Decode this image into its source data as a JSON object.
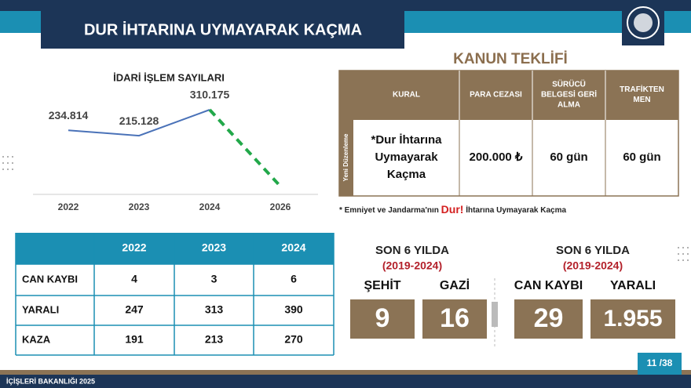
{
  "header": {
    "title": "DUR İHTARINA UYMAYARAK KAÇMA"
  },
  "chart_data": {
    "type": "line",
    "title": "İDARİ İŞLEM SAYILARI",
    "categories": [
      "2022",
      "2023",
      "2024",
      "2026"
    ],
    "series": [
      {
        "color": "#4a72b8",
        "values": [
          234814,
          215128,
          310175,
          null
        ],
        "value_labels": [
          "234.814",
          "215.128",
          "310.175",
          null
        ]
      },
      {
        "color": "#22a84a",
        "dashed": true,
        "values": [
          null,
          null,
          310175,
          30000
        ]
      }
    ]
  },
  "law_table": {
    "title": "KANUN TEKLİFİ",
    "side_label": "Yeni Düzenleme",
    "columns": [
      [
        "KURAL"
      ],
      [
        "PARA CEZASI"
      ],
      [
        "SÜRÜCÜ",
        "BELGESİ GERİ",
        "ALMA"
      ],
      [
        "TRAFİKTEN",
        "MEN"
      ]
    ],
    "rows": [
      [
        [
          "*Dur İhtarına",
          "Uymayarak",
          "Kaçma"
        ],
        [
          "200.000 ₺"
        ],
        [
          "60 gün"
        ],
        [
          "60 gün"
        ]
      ]
    ]
  },
  "note": {
    "before": "* Emniyet ve Jandarma'nın",
    "emphasis": "Dur!",
    "after": "İhtarına Uymayarak Kaçma"
  },
  "stats_table": {
    "columns": [
      "2022",
      "2023",
      "2024"
    ],
    "rows": [
      {
        "label": "CAN KAYBI",
        "values": [
          4,
          3,
          6
        ]
      },
      {
        "label": "YARALI",
        "values": [
          247,
          313,
          390
        ]
      },
      {
        "label": "KAZA",
        "values": [
          191,
          213,
          270
        ]
      }
    ]
  },
  "stats": [
    {
      "heading": "SON 6 YILDA",
      "period": "(2019-2024)",
      "items": [
        {
          "label": "ŞEHİT",
          "value": 9
        },
        {
          "label": "GAZİ",
          "value": 16
        }
      ]
    },
    {
      "heading": "SON 6 YILDA",
      "period": "(2019-2024)",
      "items": [
        {
          "label": "CAN KAYBI",
          "value": 29
        },
        {
          "label": "YARALI",
          "value": 1955,
          "value_label": "1.955"
        }
      ]
    }
  ],
  "footer": {
    "ministry": "İÇİŞLERİ BAKANLIĞI 2025",
    "page": "11 /38"
  }
}
